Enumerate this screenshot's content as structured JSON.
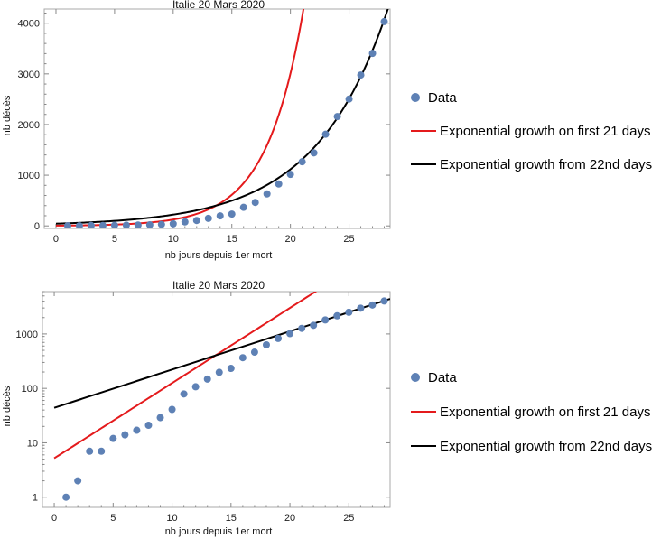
{
  "chart_data": [
    {
      "type": "scatter",
      "title": "Italie 20 Mars 2020",
      "xlabel": "nb jours depuis 1er mort",
      "ylabel": "nb décès",
      "scale": "linear",
      "xlim": [
        -1,
        28.5
      ],
      "ylim": [
        -50,
        4280
      ],
      "xticks": [
        0,
        5,
        10,
        15,
        20,
        25
      ],
      "yticks": [
        0,
        1000,
        2000,
        3000,
        4000
      ],
      "grid": false,
      "legend_position": "right",
      "series": [
        {
          "name": "Data",
          "kind": "points",
          "color": "#5e81b5",
          "x": [
            1,
            2,
            3,
            4,
            5,
            6,
            7,
            8,
            9,
            10,
            11,
            12,
            13,
            14,
            15,
            16,
            17,
            18,
            19,
            20,
            21,
            22,
            23,
            24,
            25,
            26,
            27,
            28
          ],
          "y": [
            1,
            2,
            7,
            7,
            12,
            14,
            17,
            21,
            29,
            41,
            79,
            107,
            148,
            197,
            233,
            366,
            463,
            631,
            827,
            1016,
            1266,
            1441,
            1809,
            2158,
            2503,
            2978,
            3405,
            4032
          ]
        },
        {
          "name": "Exponential growth on first 21 days",
          "kind": "exp",
          "color": "#e41a1c",
          "a": 5.2,
          "b": 0.318
        },
        {
          "name": "Exponential growth from 22nd days",
          "kind": "exp",
          "color": "#000000",
          "a": 44,
          "b": 0.1617
        }
      ]
    },
    {
      "type": "scatter",
      "title": "Italie 20 Mars 2020",
      "xlabel": "nb jours depuis 1er mort",
      "ylabel": "nb décès",
      "scale": "log",
      "xlim": [
        -1,
        28.5
      ],
      "ylim": [
        0.65,
        6000
      ],
      "xticks": [
        0,
        5,
        10,
        15,
        20,
        25
      ],
      "yticks": [
        1,
        10,
        100,
        1000
      ],
      "grid": false,
      "legend_position": "right",
      "series": [
        {
          "name": "Data",
          "kind": "points",
          "color": "#5e81b5",
          "x": [
            1,
            2,
            3,
            4,
            5,
            6,
            7,
            8,
            9,
            10,
            11,
            12,
            13,
            14,
            15,
            16,
            17,
            18,
            19,
            20,
            21,
            22,
            23,
            24,
            25,
            26,
            27,
            28
          ],
          "y": [
            1,
            2,
            7,
            7,
            12,
            14,
            17,
            21,
            29,
            41,
            79,
            107,
            148,
            197,
            233,
            366,
            463,
            631,
            827,
            1016,
            1266,
            1441,
            1809,
            2158,
            2503,
            2978,
            3405,
            4032
          ]
        },
        {
          "name": "Exponential growth on first 21 days",
          "kind": "exp",
          "color": "#e41a1c",
          "a": 5.2,
          "b": 0.318
        },
        {
          "name": "Exponential growth from 22nd days",
          "kind": "exp",
          "color": "#000000",
          "a": 44,
          "b": 0.1617
        }
      ]
    }
  ]
}
